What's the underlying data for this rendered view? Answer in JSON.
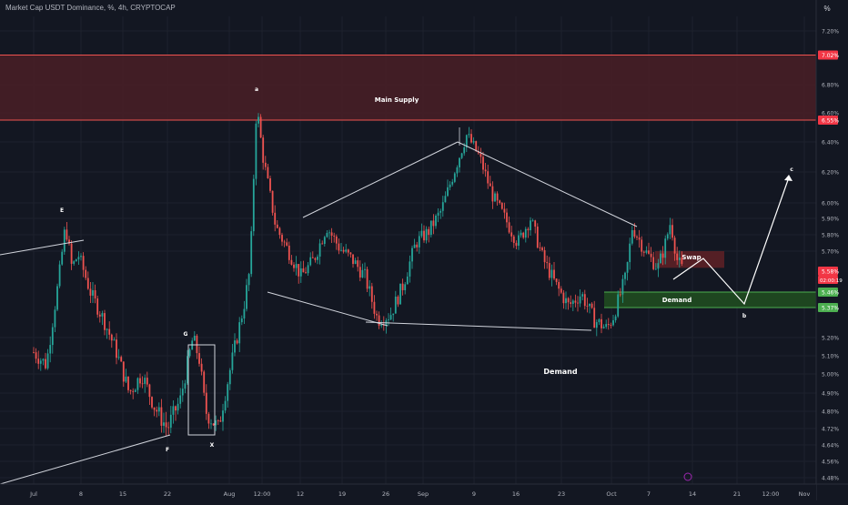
{
  "header": {
    "title": "Market Cap USDT Dominance, %, 4h, CRYPTOCAP",
    "scale_button": "%"
  },
  "colors": {
    "background": "#131722",
    "grid": "#1e222d",
    "bull": "#26a69a",
    "bear": "#ef5350",
    "axis_text": "#b2b5be",
    "supply_fill": "#4a1f26",
    "supply_line": "#ef5350",
    "demand_fill": "#1e4620",
    "demand_line": "#4caf50",
    "swap_fill": "#5c2026",
    "drawing": "#d1d4dc",
    "event_marker": "#9c27b0"
  },
  "chart_data": {
    "type": "candlestick",
    "timeframe": "4h",
    "y_unit": "%",
    "ylim": [
      4.44,
      7.32
    ],
    "x_ticks": [
      "Jul",
      "8",
      "15",
      "22",
      "Aug",
      "12:00",
      "12",
      "19",
      "26",
      "Sep",
      "9",
      "16",
      "23",
      "Oct",
      "7",
      "14",
      "21",
      "12:00",
      "Nov"
    ],
    "y_ticks": [
      "7.20%",
      "6.80%",
      "6.60%",
      "6.40%",
      "6.20%",
      "6.00%",
      "5.90%",
      "5.80%",
      "5.70%",
      "5.20%",
      "5.10%",
      "5.00%",
      "4.90%",
      "4.80%",
      "4.72%",
      "4.64%",
      "4.56%",
      "4.48%"
    ],
    "price_labels": [
      {
        "label": "7.02%",
        "value": 7.02,
        "color": "#f23645"
      },
      {
        "label": "6.55%",
        "value": 6.55,
        "color": "#f23645"
      },
      {
        "label": "5.58%",
        "value": 5.58,
        "color": "#f23645",
        "countdown": "02:00:19"
      },
      {
        "label": "5.46%",
        "value": 5.46,
        "color": "#4caf50"
      },
      {
        "label": "5.37%",
        "value": 5.37,
        "color": "#4caf50"
      }
    ],
    "price_path": [
      [
        "Jul 1",
        5.12
      ],
      [
        "Jul 3",
        5.05
      ],
      [
        "Jul 5",
        5.55
      ],
      [
        "Jul 6",
        5.86
      ],
      [
        "Jul 7",
        5.6
      ],
      [
        "Jul 8",
        5.68
      ],
      [
        "Jul 10",
        5.45
      ],
      [
        "Jul 12",
        5.3
      ],
      [
        "Jul 14",
        5.12
      ],
      [
        "Jul 16",
        4.9
      ],
      [
        "Jul 18",
        5.0
      ],
      [
        "Jul 20",
        4.82
      ],
      [
        "Jul 22",
        4.72
      ],
      [
        "Jul 24",
        4.86
      ],
      [
        "Jul 26",
        5.2
      ],
      [
        "Jul 27",
        5.08
      ],
      [
        "Jul 28",
        4.8
      ],
      [
        "Jul 30",
        4.72
      ],
      [
        "Aug 1",
        5.05
      ],
      [
        "Aug 3",
        5.38
      ],
      [
        "Aug 4",
        5.6
      ],
      [
        "Aug 5",
        6.65
      ],
      [
        "Aug 6",
        6.3
      ],
      [
        "Aug 8",
        5.85
      ],
      [
        "Aug 10",
        5.7
      ],
      [
        "Aug 12",
        5.55
      ],
      [
        "Aug 14",
        5.65
      ],
      [
        "Aug 16",
        5.85
      ],
      [
        "Aug 18",
        5.72
      ],
      [
        "Aug 20",
        5.65
      ],
      [
        "Aug 22",
        5.55
      ],
      [
        "Aug 24",
        5.3
      ],
      [
        "Aug 26",
        5.33
      ],
      [
        "Aug 28",
        5.5
      ],
      [
        "Aug 30",
        5.75
      ],
      [
        "Sep 1",
        5.82
      ],
      [
        "Sep 3",
        5.95
      ],
      [
        "Sep 5",
        6.2
      ],
      [
        "Sep 7",
        6.45
      ],
      [
        "Sep 9",
        6.3
      ],
      [
        "Sep 11",
        6.05
      ],
      [
        "Sep 13",
        5.9
      ],
      [
        "Sep 15",
        5.75
      ],
      [
        "Sep 17",
        5.9
      ],
      [
        "Sep 19",
        5.65
      ],
      [
        "Sep 21",
        5.5
      ],
      [
        "Sep 23",
        5.38
      ],
      [
        "Sep 25",
        5.45
      ],
      [
        "Sep 27",
        5.3
      ],
      [
        "Sep 29",
        5.25
      ],
      [
        "Sep 30",
        5.32
      ],
      [
        "Oct 2",
        5.55
      ],
      [
        "Oct 3",
        5.85
      ],
      [
        "Oct 5",
        5.7
      ],
      [
        "Oct 7",
        5.6
      ],
      [
        "Oct 8",
        5.72
      ],
      [
        "Oct 9",
        5.88
      ],
      [
        "Oct 10",
        5.65
      ],
      [
        "Oct 11",
        5.58
      ]
    ],
    "zones": [
      {
        "name": "Main Supply",
        "label": "Main Supply",
        "from": 6.55,
        "to": 7.02
      },
      {
        "name": "Demand",
        "label": "Demand",
        "from": 5.37,
        "to": 5.46
      },
      {
        "name": "Swap",
        "label": "Swap",
        "from": 5.6,
        "to": 5.7
      }
    ],
    "wave_labels": [
      "a",
      "b",
      "c",
      "E",
      "F",
      "G",
      "X"
    ],
    "annotations": [
      "Demand"
    ]
  }
}
